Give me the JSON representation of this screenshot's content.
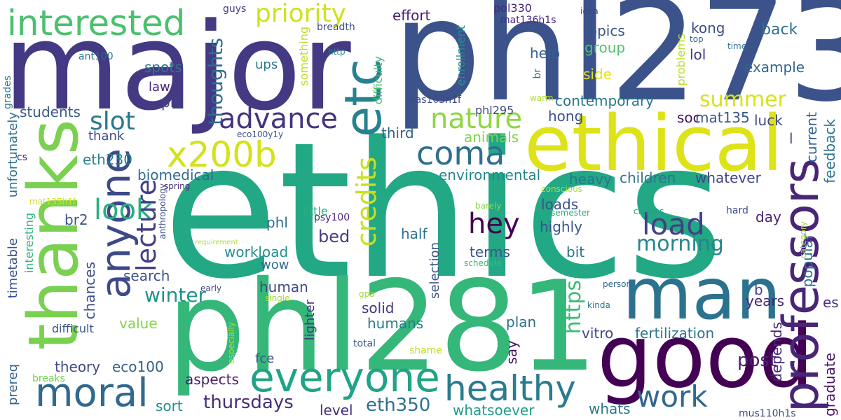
{
  "words": [
    {
      "text": "ethics",
      "color": "#22a884"
    },
    {
      "text": "major",
      "color": "#443983"
    },
    {
      "text": "phl273",
      "color": "#3b528b"
    },
    {
      "text": "phl281",
      "color": "#35b779"
    },
    {
      "text": "ethical",
      "color": "#dde318"
    },
    {
      "text": "good",
      "color": "#440154"
    },
    {
      "text": "thanks",
      "color": "#7ad151"
    },
    {
      "text": "man",
      "color": "#2c728e"
    },
    {
      "text": "etc",
      "color": "#26828e"
    },
    {
      "text": "professors",
      "color": "#482576"
    },
    {
      "text": "everyone",
      "color": "#20a386"
    },
    {
      "text": "anyone",
      "color": "#3e4989"
    },
    {
      "text": "interested",
      "color": "#4ac16d"
    },
    {
      "text": "moral",
      "color": "#306a8e"
    },
    {
      "text": "healthy",
      "color": "#287c8e"
    },
    {
      "text": "x200b",
      "color": "#d2e21b"
    },
    {
      "text": "coma",
      "color": "#2e6e8e"
    },
    {
      "text": "advance",
      "color": "#46337f"
    },
    {
      "text": "nature",
      "color": "#8fd744"
    },
    {
      "text": "work",
      "color": "#31688e"
    },
    {
      "text": "load",
      "color": "#424086"
    },
    {
      "text": "hey",
      "color": "#440154"
    },
    {
      "text": "look",
      "color": "#29af7f"
    },
    {
      "text": "priority",
      "color": "#d0e11c"
    },
    {
      "text": "credits",
      "color": "#c8e020"
    },
    {
      "text": "lecture",
      "color": "#433e85"
    },
    {
      "text": "slot",
      "color": "#2a788e"
    },
    {
      "text": "morning",
      "color": "#25858e"
    },
    {
      "text": "summer",
      "color": "#d8e219"
    },
    {
      "text": "thursdays",
      "color": "#472d7b"
    },
    {
      "text": "eth350",
      "color": "#2d708e"
    },
    {
      "text": "post",
      "color": "#482173"
    },
    {
      "text": "https",
      "color": "#3bbb75"
    },
    {
      "text": "winter",
      "color": "#20928c"
    },
    {
      "text": "thoughts",
      "color": "#2f6c8e"
    },
    {
      "text": "effort",
      "color": "#481d6f"
    },
    {
      "text": "topics",
      "color": "#3a548c"
    },
    {
      "text": "group",
      "color": "#50c46a"
    },
    {
      "text": "back",
      "color": "#2c718e"
    },
    {
      "text": "kong",
      "color": "#3d4d8a"
    },
    {
      "text": "lol",
      "color": "#463480"
    },
    {
      "text": "help",
      "color": "#34618d"
    },
    {
      "text": "side",
      "color": "#e2e418"
    },
    {
      "text": "example",
      "color": "#32658e"
    },
    {
      "text": "contemporary",
      "color": "#2a768e"
    },
    {
      "text": "hong",
      "color": "#3b518b"
    },
    {
      "text": "soc",
      "color": "#471063"
    },
    {
      "text": "mat135",
      "color": "#38588c"
    },
    {
      "text": "luck",
      "color": "#3f4788"
    },
    {
      "text": "third",
      "color": "#33628d"
    },
    {
      "text": "animals",
      "color": "#7fd34e"
    },
    {
      "text": "environmental",
      "color": "#23888e"
    },
    {
      "text": "heavy",
      "color": "#2c738e"
    },
    {
      "text": "children",
      "color": "#2b748e"
    },
    {
      "text": "whatever",
      "color": "#404588"
    },
    {
      "text": "loads",
      "color": "#3c4f8a"
    },
    {
      "text": "highly",
      "color": "#3a538b"
    },
    {
      "text": "half",
      "color": "#2d708e"
    },
    {
      "text": "bed",
      "color": "#433d84"
    },
    {
      "text": "terms",
      "color": "#39568c"
    },
    {
      "text": "bit",
      "color": "#2d718e"
    },
    {
      "text": "workload",
      "color": "#218f8d"
    },
    {
      "text": "wow",
      "color": "#2f6b8e"
    },
    {
      "text": "search",
      "color": "#3b528b"
    },
    {
      "text": "human",
      "color": "#3e4989"
    },
    {
      "text": "humans",
      "color": "#287c8e"
    },
    {
      "text": "solid",
      "color": "#453781"
    },
    {
      "text": "value",
      "color": "#84d44b"
    },
    {
      "text": "theory",
      "color": "#3e4a89"
    },
    {
      "text": "eco100",
      "color": "#34608d"
    },
    {
      "text": "aspects",
      "color": "#481c6e"
    },
    {
      "text": "sort",
      "color": "#228c8d"
    },
    {
      "text": "level",
      "color": "#46307e"
    },
    {
      "text": "whatsoever",
      "color": "#1f9e89"
    },
    {
      "text": "whats",
      "color": "#2a778e"
    },
    {
      "text": "plan",
      "color": "#2e6f8e"
    },
    {
      "text": "say",
      "color": "#471365"
    },
    {
      "text": "vitro",
      "color": "#3f4889"
    },
    {
      "text": "fertilization",
      "color": "#2b758e"
    },
    {
      "text": "years",
      "color": "#482475"
    },
    {
      "text": "depends",
      "color": "#482979"
    },
    {
      "text": "popular",
      "color": "#2c728e"
    },
    {
      "text": "graduate",
      "color": "#481467"
    },
    {
      "text": "current",
      "color": "#33638d"
    },
    {
      "text": "feedback",
      "color": "#2a768e"
    },
    {
      "text": "es",
      "color": "#46327e"
    },
    {
      "text": "b",
      "color": "#414487"
    },
    {
      "text": "l",
      "color": "#3e4a89"
    },
    {
      "text": "day",
      "color": "#482173"
    },
    {
      "text": "eth230",
      "color": "#25838e"
    },
    {
      "text": "biomedical",
      "color": "#2f6c8e"
    },
    {
      "text": "phl",
      "color": "#2e6d8e"
    },
    {
      "text": "br2",
      "color": "#39558c"
    },
    {
      "text": "chances",
      "color": "#3d4e8a"
    },
    {
      "text": "students",
      "color": "#38598c"
    },
    {
      "text": "thank",
      "color": "#3d4d8a"
    },
    {
      "text": "pls",
      "color": "#424186"
    },
    {
      "text": "law",
      "color": "#482878"
    },
    {
      "text": "spots",
      "color": "#2a778e"
    },
    {
      "text": "ups",
      "color": "#2a788e"
    },
    {
      "text": "unfortunately",
      "color": "#2c728e"
    },
    {
      "text": "timetable",
      "color": "#3b518b"
    },
    {
      "text": "prereq",
      "color": "#33638d"
    },
    {
      "text": "interesting",
      "color": "#2db27d"
    },
    {
      "text": "difficult",
      "color": "#3a538b"
    },
    {
      "text": "breaks",
      "color": "#73d056"
    },
    {
      "text": "cs",
      "color": "#471063"
    },
    {
      "text": "grades",
      "color": "#2a788e"
    },
    {
      "text": "ant100",
      "color": "#2d708e"
    },
    {
      "text": "http",
      "color": "#25858e"
    },
    {
      "text": "guys",
      "color": "#453882"
    },
    {
      "text": "breadth",
      "color": "#3e4c8a"
    },
    {
      "text": "something",
      "color": "#bddf26"
    },
    {
      "text": "difficulty",
      "color": "#43bf71"
    },
    {
      "text": "enrollment",
      "color": "#21918c"
    },
    {
      "text": "phl295",
      "color": "#3e4989"
    },
    {
      "text": "pol330",
      "color": "#482677"
    },
    {
      "text": "mat136h1s",
      "color": "#472c7a"
    },
    {
      "text": "idea",
      "color": "#3f4788"
    },
    {
      "text": "top",
      "color": "#33638d"
    },
    {
      "text": "time",
      "color": "#2d718e"
    },
    {
      "text": "problems",
      "color": "#b5de2b"
    },
    {
      "text": "eas103h1f",
      "color": "#3e4989"
    },
    {
      "text": "warm",
      "color": "#addc30"
    },
    {
      "text": "br",
      "color": "#306a8e"
    },
    {
      "text": "eco100y1y",
      "color": "#3b528b"
    },
    {
      "text": "spring",
      "color": "#472e7c"
    },
    {
      "text": "conscious",
      "color": "#addc30"
    },
    {
      "text": "anthropology",
      "color": "#3e4c8a"
    },
    {
      "text": "mat135h1f",
      "color": "#d5e21a"
    },
    {
      "text": "requirement",
      "color": "#addc30"
    },
    {
      "text": "psy100",
      "color": "#482475"
    },
    {
      "text": "barely",
      "color": "#8bd646"
    },
    {
      "text": "semester",
      "color": "#29af7f"
    },
    {
      "text": "classes",
      "color": "#20a386"
    },
    {
      "text": "hard",
      "color": "#3d4d8a"
    },
    {
      "text": "category",
      "color": "#a8db34"
    },
    {
      "text": "schedule",
      "color": "#3bbb75"
    },
    {
      "text": "early",
      "color": "#3f4788"
    },
    {
      "text": "single",
      "color": "#a2da37"
    },
    {
      "text": "gpa",
      "color": "#a0da39"
    },
    {
      "text": "especially",
      "color": "#addc30"
    },
    {
      "text": "person",
      "color": "#32658e"
    },
    {
      "text": "kinda",
      "color": "#2a788e"
    },
    {
      "text": "total",
      "color": "#34608d"
    },
    {
      "text": "shame",
      "color": "#bddf26"
    },
    {
      "text": "fce",
      "color": "#3b518b"
    },
    {
      "text": "selection",
      "color": "#3b528b"
    },
    {
      "text": "lighter",
      "color": "#46337f"
    },
    {
      "text": "little",
      "color": "#29af7f"
    },
    {
      "text": "mus110h1s",
      "color": "#3e4989"
    }
  ]
}
